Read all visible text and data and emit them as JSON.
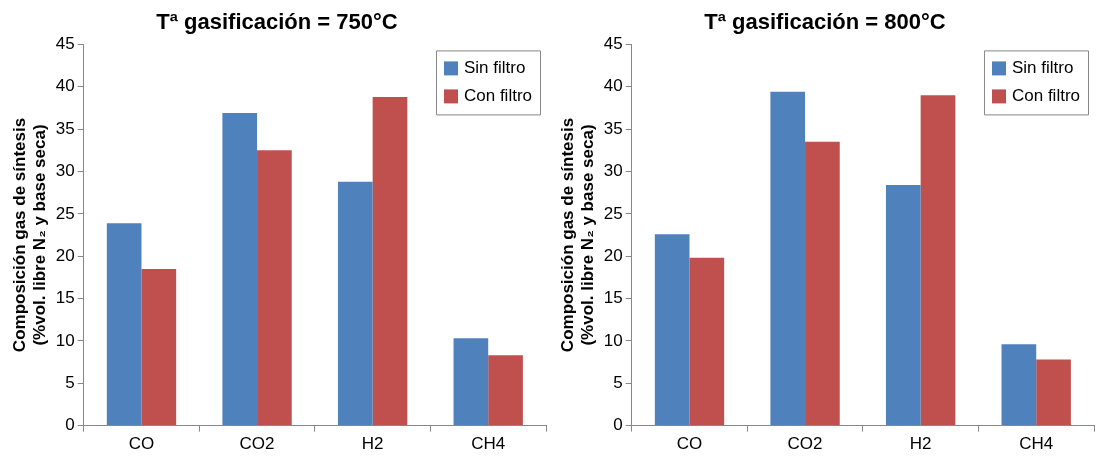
{
  "chart_data": [
    {
      "type": "bar",
      "title": "Tª gasificación = 750°C",
      "ylabel": "Composición gas de síntesis (%vol. libre N₂ y base seca)",
      "categories": [
        "CO",
        "CO2",
        "H2",
        "CH4"
      ],
      "series": [
        {
          "name": "Sin filtro",
          "color": "#4f81bd",
          "values": [
            23.9,
            36.9,
            28.8,
            10.3
          ]
        },
        {
          "name": "Con filtro",
          "color": "#c0504d",
          "values": [
            18.5,
            32.5,
            38.8,
            8.3
          ]
        }
      ],
      "ylim": [
        0,
        45
      ],
      "yticks": [
        0,
        5,
        10,
        15,
        20,
        25,
        30,
        35,
        40,
        45
      ],
      "grid": false,
      "legend": "top right"
    },
    {
      "type": "bar",
      "title": "Tª gasificación = 800°C",
      "ylabel": "Composición gas de síntesis (%vol. libre N₂ y base seca)",
      "categories": [
        "CO",
        "CO2",
        "H2",
        "CH4"
      ],
      "series": [
        {
          "name": "Sin filtro",
          "color": "#4f81bd",
          "values": [
            22.6,
            39.4,
            28.4,
            9.6
          ]
        },
        {
          "name": "Con filtro",
          "color": "#c0504d",
          "values": [
            19.8,
            33.5,
            39.0,
            7.8
          ]
        }
      ],
      "ylim": [
        0,
        45
      ],
      "yticks": [
        0,
        5,
        10,
        15,
        20,
        25,
        30,
        35,
        40,
        45
      ],
      "grid": false,
      "legend": "top right"
    }
  ]
}
